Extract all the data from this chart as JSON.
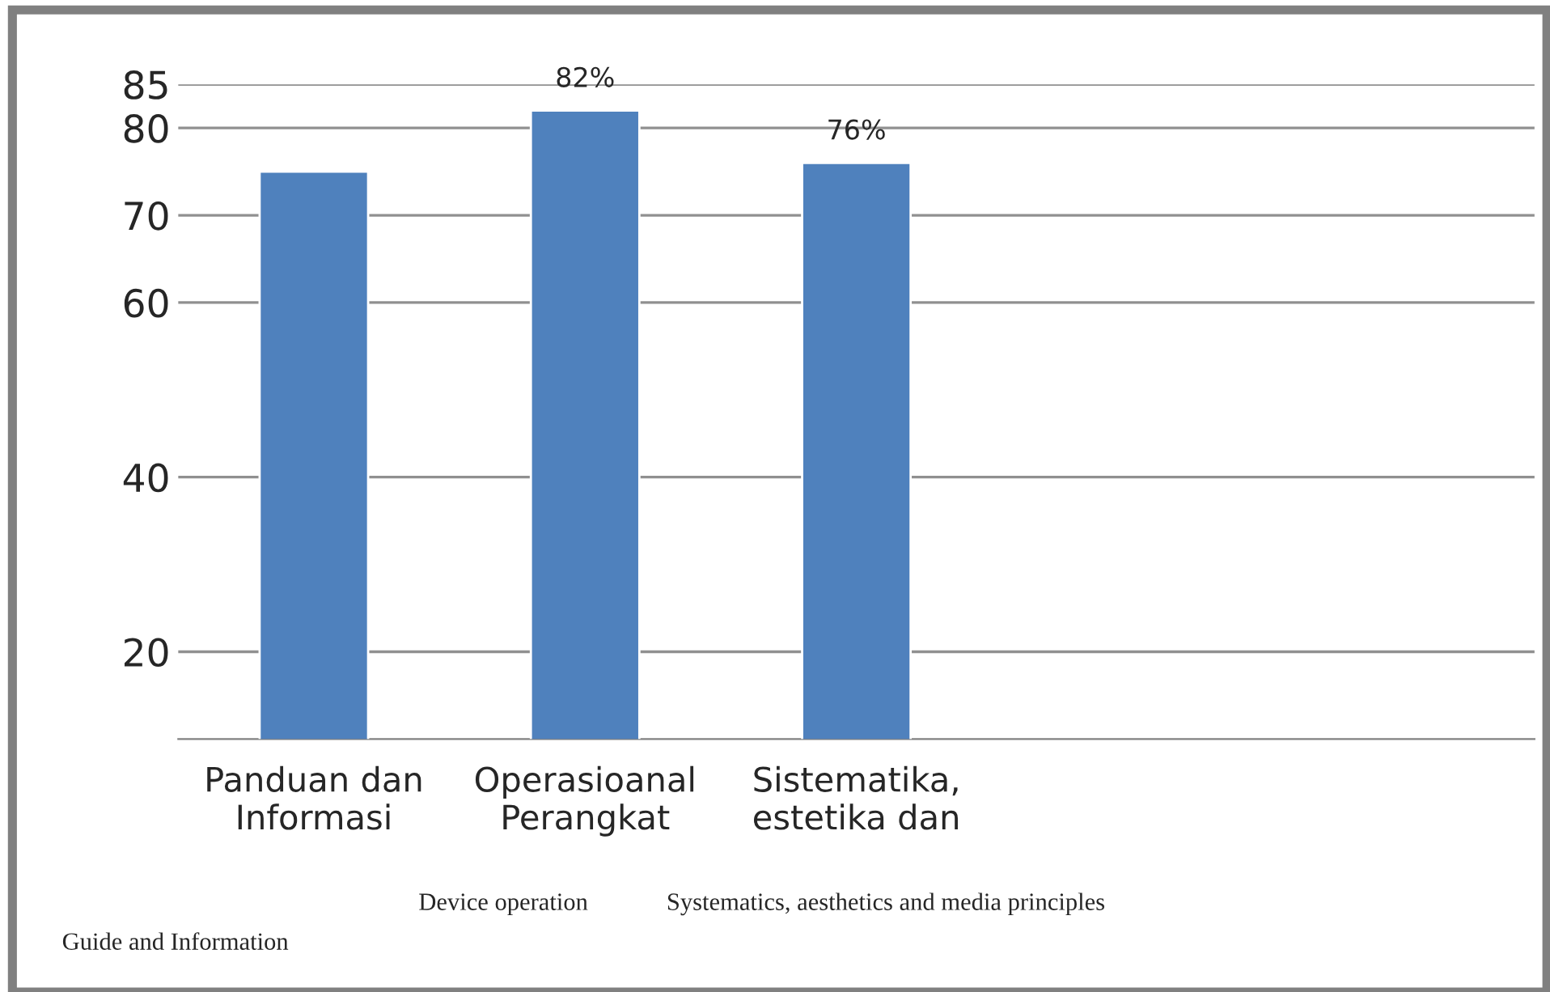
{
  "chart_data": {
    "type": "bar",
    "categories": [
      "Panduan dan\nInformasi",
      "Operasioanal\nPerangkat",
      "Sistematika,\nestetika dan",
      null,
      null
    ],
    "values": [
      75,
      82,
      76,
      null,
      null
    ],
    "value_labels": [
      null,
      "82%",
      "76%",
      null,
      null
    ],
    "color": "#4f81bd",
    "ylim": [
      10,
      85
    ],
    "yticks": [
      20,
      40,
      60,
      70,
      80,
      85
    ],
    "grid": "y",
    "annotations": [
      "Guide and Information",
      "Device operation",
      "Systematics, aesthetics and media principles"
    ]
  }
}
